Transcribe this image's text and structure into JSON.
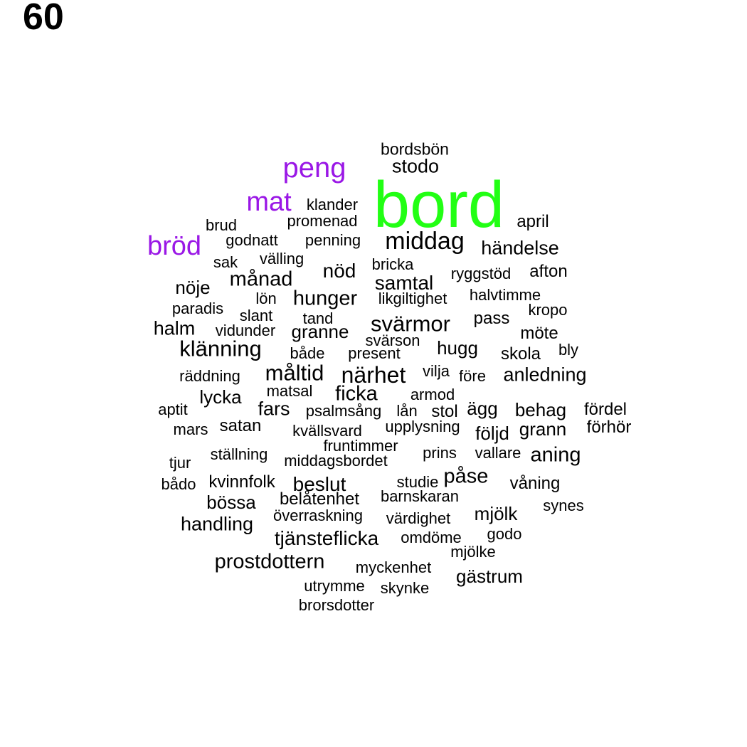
{
  "page_number": "60",
  "colors": {
    "highlight": "#22ff14",
    "related": "#9a17e6",
    "default": "#000000"
  },
  "words": [
    {
      "text": "bord",
      "tier": "highlight"
    },
    {
      "text": "peng",
      "tier": "related"
    },
    {
      "text": "mat",
      "tier": "related"
    },
    {
      "text": "bröd",
      "tier": "related"
    },
    {
      "text": "bordsbön"
    },
    {
      "text": "stodo"
    },
    {
      "text": "klander"
    },
    {
      "text": "promenad"
    },
    {
      "text": "april"
    },
    {
      "text": "brud"
    },
    {
      "text": "godnatt"
    },
    {
      "text": "penning"
    },
    {
      "text": "middag"
    },
    {
      "text": "händelse"
    },
    {
      "text": "sak"
    },
    {
      "text": "välling"
    },
    {
      "text": "bricka"
    },
    {
      "text": "nöd"
    },
    {
      "text": "ryggstöd"
    },
    {
      "text": "afton"
    },
    {
      "text": "månad"
    },
    {
      "text": "samtal"
    },
    {
      "text": "nöje"
    },
    {
      "text": "lön"
    },
    {
      "text": "hunger"
    },
    {
      "text": "likgiltighet"
    },
    {
      "text": "halvtimme"
    },
    {
      "text": "paradis"
    },
    {
      "text": "kropo"
    },
    {
      "text": "slant"
    },
    {
      "text": "tand"
    },
    {
      "text": "pass"
    },
    {
      "text": "halm"
    },
    {
      "text": "vidunder"
    },
    {
      "text": "granne"
    },
    {
      "text": "svärmor"
    },
    {
      "text": "möte"
    },
    {
      "text": "svärson"
    },
    {
      "text": "hugg"
    },
    {
      "text": "bly"
    },
    {
      "text": "klänning"
    },
    {
      "text": "både"
    },
    {
      "text": "present"
    },
    {
      "text": "skola"
    },
    {
      "text": "räddning"
    },
    {
      "text": "måltid"
    },
    {
      "text": "närhet"
    },
    {
      "text": "vilja"
    },
    {
      "text": "före"
    },
    {
      "text": "anledning"
    },
    {
      "text": "lycka"
    },
    {
      "text": "matsal"
    },
    {
      "text": "ficka"
    },
    {
      "text": "armod"
    },
    {
      "text": "aptit"
    },
    {
      "text": "fars"
    },
    {
      "text": "psalmsång"
    },
    {
      "text": "lån"
    },
    {
      "text": "stol"
    },
    {
      "text": "ägg"
    },
    {
      "text": "behag"
    },
    {
      "text": "fördel"
    },
    {
      "text": "mars"
    },
    {
      "text": "satan"
    },
    {
      "text": "kvällsvard"
    },
    {
      "text": "upplysning"
    },
    {
      "text": "följd"
    },
    {
      "text": "grann"
    },
    {
      "text": "förhör"
    },
    {
      "text": "fruntimmer"
    },
    {
      "text": "tjur"
    },
    {
      "text": "ställning"
    },
    {
      "text": "middagsbordet"
    },
    {
      "text": "prins"
    },
    {
      "text": "vallare"
    },
    {
      "text": "aning"
    },
    {
      "text": "bådo"
    },
    {
      "text": "kvinnfolk"
    },
    {
      "text": "beslut"
    },
    {
      "text": "studie"
    },
    {
      "text": "påse"
    },
    {
      "text": "våning"
    },
    {
      "text": "bössa"
    },
    {
      "text": "belåtenhet"
    },
    {
      "text": "barnskaran"
    },
    {
      "text": "synes"
    },
    {
      "text": "överraskning"
    },
    {
      "text": "värdighet"
    },
    {
      "text": "mjölk"
    },
    {
      "text": "handling"
    },
    {
      "text": "tjänsteflicka"
    },
    {
      "text": "omdöme"
    },
    {
      "text": "godo"
    },
    {
      "text": "mjölke"
    },
    {
      "text": "prostdottern"
    },
    {
      "text": "myckenhet"
    },
    {
      "text": "gästrum"
    },
    {
      "text": "utrymme"
    },
    {
      "text": "skynke"
    },
    {
      "text": "brorsdotter"
    }
  ]
}
